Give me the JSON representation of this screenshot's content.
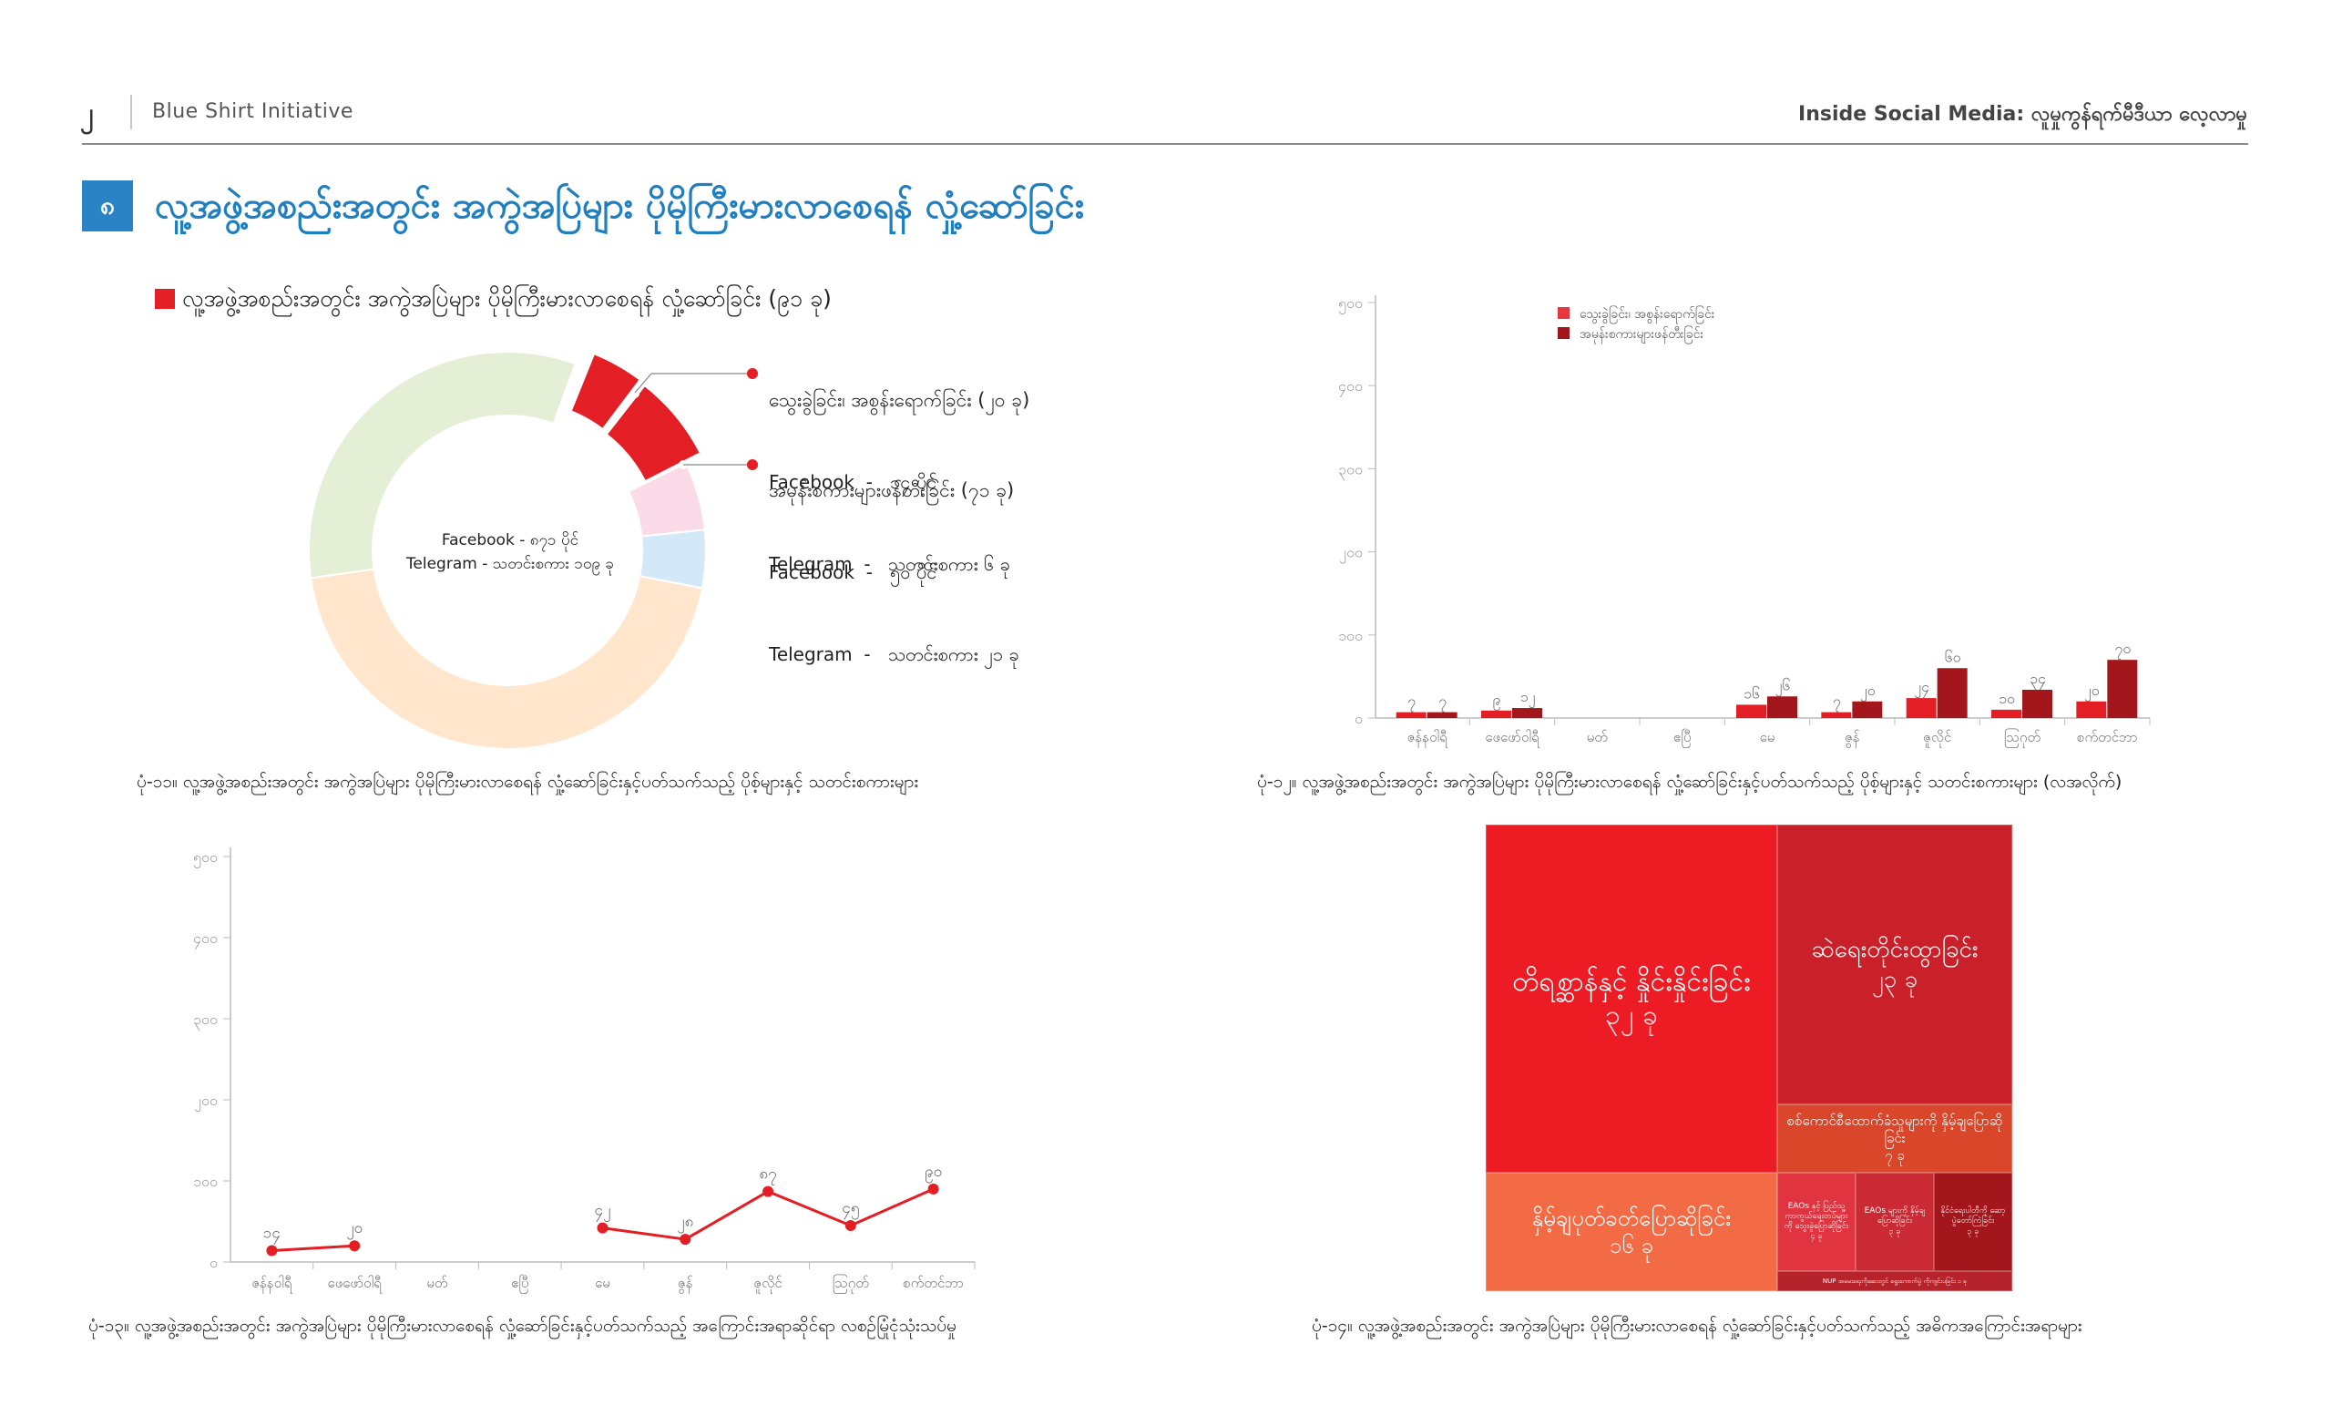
{
  "header": {
    "page_number": "၂",
    "org": "Blue Shirt Initiative",
    "report_title": "Inside Social Media: လူမှုကွန်ရက်မီဒီယာ လေ့လာမှု"
  },
  "section": {
    "number": "၈",
    "title": "လူ့အဖွဲ့အစည်းအတွင်း အကွဲအပြဲများ ပိုမိုကြီးမားလာစေရန် လှုံ့ဆော်ခြင်း"
  },
  "colors": {
    "accent_blue": "#1f7fc0",
    "red": "#e31e25",
    "dark_red": "#a3161c",
    "donut_green": "#e4efd6",
    "donut_peach": "#ffe6cc",
    "donut_pink": "#fcdbe8",
    "donut_lightblue": "#d4e9f7"
  },
  "donut": {
    "legend": "လူ့အဖွဲ့အစည်းအတွင်း အကွဲအပြဲများ ပိုမိုကြီးမားလာစေရန် လှုံ့ဆော်ခြင်း (၉၁ ခု)",
    "center_line1": "Facebook - ၈၇၁ ပိုင်",
    "center_line2": "Telegram - သတင်းစကား ၁၀၉ ခု",
    "callout1_title": "သွေးခွဲခြင်း၊ အစွန်းရောက်ခြင်း (၂၀ ခု)",
    "callout1_fb": "Facebook  -   ၁၄ ပိုင်",
    "callout1_tg": "Telegram  -   သတင်းစကား ၆ ခု",
    "callout2_title": "အမုန်းစကားများဖန်တီးခြင်း (၇၁ ခု)",
    "callout2_fb": "Facebook  -   ၅၀ ပိုင်",
    "callout2_tg": "Telegram  -   သတင်းစကား ၂၁ ခု",
    "caption": "ပုံ-၁၁။ လူ့အဖွဲ့အစည်းအတွင်း အကွဲအပြဲများ ပိုမိုကြီးမားလာစေရန် လှုံ့ဆော်ခြင်းနှင့်ပတ်သက်သည့် ပိုစ့်များနှင့် သတင်းစကားများ"
  },
  "bar_chart": {
    "legend1": "သွေးခွဲခြင်း၊ အစွန်းရောက်ခြင်း",
    "legend2": "အမုန်းစကားများဖန်တီးခြင်း",
    "caption": "ပုံ-၁၂။ လူ့အဖွဲ့အစည်းအတွင်း အကွဲအပြဲများ ပိုမိုကြီးမားလာစေရန် လှုံ့ဆော်ခြင်းနှင့်ပတ်သက်သည့် ပိုစ့်များနှင့် သတင်းစကားများ (လအလိုက်)"
  },
  "line_chart": {
    "caption": "ပုံ-၁၃။ လူ့အဖွဲ့အစည်းအတွင်း အကွဲအပြဲများ ပိုမိုကြီးမားလာစေရန် လှုံ့ဆော်ခြင်းနှင့်ပတ်သက်သည့် အကြောင်းအရာဆိုင်ရာ လစဉ်မြုံငုံသုံးသပ်မှု"
  },
  "treemap": {
    "caption": "ပုံ-၁၄။ လူ့အဖွဲ့အစည်းအတွင်း အကွဲအပြဲများ ပိုမိုကြီးမားလာစေရန် လှုံ့ဆော်ခြင်းနှင့်ပတ်သက်သည့် အဓိကအကြောင်းအရာများ"
  },
  "chart_data": [
    {
      "type": "pie",
      "labels": [
        "Facebook",
        "Telegram",
        "သွေးခွဲခြင်း၊ အစွန်းရောက်ခြင်း",
        "အမုန်းစကားများဖန်တီးခြင်း"
      ],
      "values": [
        871,
        109,
        20,
        71
      ],
      "value_labels": [
        "Facebook - ၈၇၁ ပိုင်",
        "Telegram - သတင်းစကား ၁၀၉ ခု",
        "၂၀ ခု",
        "၇၁ ခု"
      ],
      "title": "လူ့အဖွဲ့အစည်းအတွင်း အကွဲအပြဲများ ပိုမိုကြီးမားလာစေရန် လှုံ့ဆော်ခြင်း (၉၁ ခု)"
    },
    {
      "type": "bar",
      "categories": [
        "ဇန်နဝါရီ",
        "ဖေဖော်ဝါရီ",
        "မတ်",
        "ဧပြီ",
        "မေ",
        "ဇွန်",
        "ဇူလိုင်",
        "ဩဂုတ်",
        "စက်တင်ဘာ"
      ],
      "series": [
        {
          "name": "သွေးခွဲခြင်း၊ အစွန်းရောက်ခြင်း",
          "values": [
            7,
            9,
            0,
            0,
            16,
            7,
            24,
            10,
            20
          ],
          "labels": [
            "၇",
            "၉",
            "",
            "",
            "၁၆",
            "၇",
            "၂၄",
            "၁၀",
            "၂၀"
          ]
        },
        {
          "name": "အမုန်းစကားများဖန်တီးခြင်း",
          "values": [
            7,
            12,
            0,
            0,
            26,
            20,
            60,
            34,
            70
          ],
          "labels": [
            "၇",
            "၁၂",
            "",
            "",
            "၂၆",
            "၂၀",
            "၆၀",
            "၃၄",
            "၇၀"
          ]
        }
      ],
      "yticks": [
        "၀",
        "၁၀၀",
        "၂၀၀",
        "၃၀၀",
        "၄၀၀",
        "၅၀၀"
      ],
      "ylim": [
        0,
        500
      ],
      "legend": "top-left"
    },
    {
      "type": "line",
      "categories": [
        "ဇန်နဝါရီ",
        "ဖေဖော်ဝါရီ",
        "မတ်",
        "ဧပြီ",
        "မေ",
        "ဇွန်",
        "ဇူလိုင်",
        "ဩဂုတ်",
        "စက်တင်ဘာ"
      ],
      "series": [
        {
          "values": [
            14,
            20,
            null,
            null,
            42,
            28,
            87,
            45,
            90
          ],
          "labels": [
            "၁၄",
            "၂၀",
            "",
            "",
            "၄၂",
            "၂၈",
            "၈၇",
            "၄၅",
            "၉၀"
          ]
        }
      ],
      "yticks": [
        "၀",
        "၁၀၀",
        "၂၀၀",
        "၃၀၀",
        "၄၀၀",
        "၅၀၀"
      ],
      "ylim": [
        0,
        500
      ]
    },
    {
      "type": "treemap",
      "items": [
        {
          "label": "တိရစ္ဆာန်နှင့် နှိုင်းနှိုင်းခြင်း",
          "count": "၃၂ ခု",
          "value": 32,
          "color": "#ed1c24"
        },
        {
          "label": "ဆဲရေးတိုင်းထွာခြင်း",
          "count": "၂၃ ခု",
          "value": 23,
          "color": "#c9202a"
        },
        {
          "label": "နှိမ့်ချပုတ်ခတ်ပြောဆိုခြင်း",
          "count": "၁၆ ခု",
          "value": 16,
          "color": "#f26b45"
        },
        {
          "label": "စစ်ကောင်စီထောက်ခံသူများကို နှိမ့်ချပြောဆိုခြင်း",
          "count": "၇ ခု",
          "value": 7,
          "color": "#d9462a"
        },
        {
          "label": "EAOs နှင့် ပြည်သူ့ကာကွယ်ရေးတပ်များကို သွေးခွဲပြောဆိုခြင်း",
          "count": "၄ ခု",
          "value": 4,
          "color": "#e03540"
        },
        {
          "label": "EAOs များကို နှိမ့်ချပြောဆိုခြင်း",
          "count": "၃ ခု",
          "value": 3,
          "color": "#c92a33"
        },
        {
          "label": "နိုင်ငံရေးပါတီကို ဆော့ပွဲတော်ကြဲခြင်း",
          "count": "၃ ခု",
          "value": 3,
          "color": "#a3161c"
        },
        {
          "label": "NUP အမေးရေးကိုဆေးတွင် ရွေးကောက်ပွဲ ကိုကျင်းပခြင်း",
          "count": "၁ ခု",
          "value": 1,
          "color": "#b7232b"
        }
      ]
    }
  ]
}
